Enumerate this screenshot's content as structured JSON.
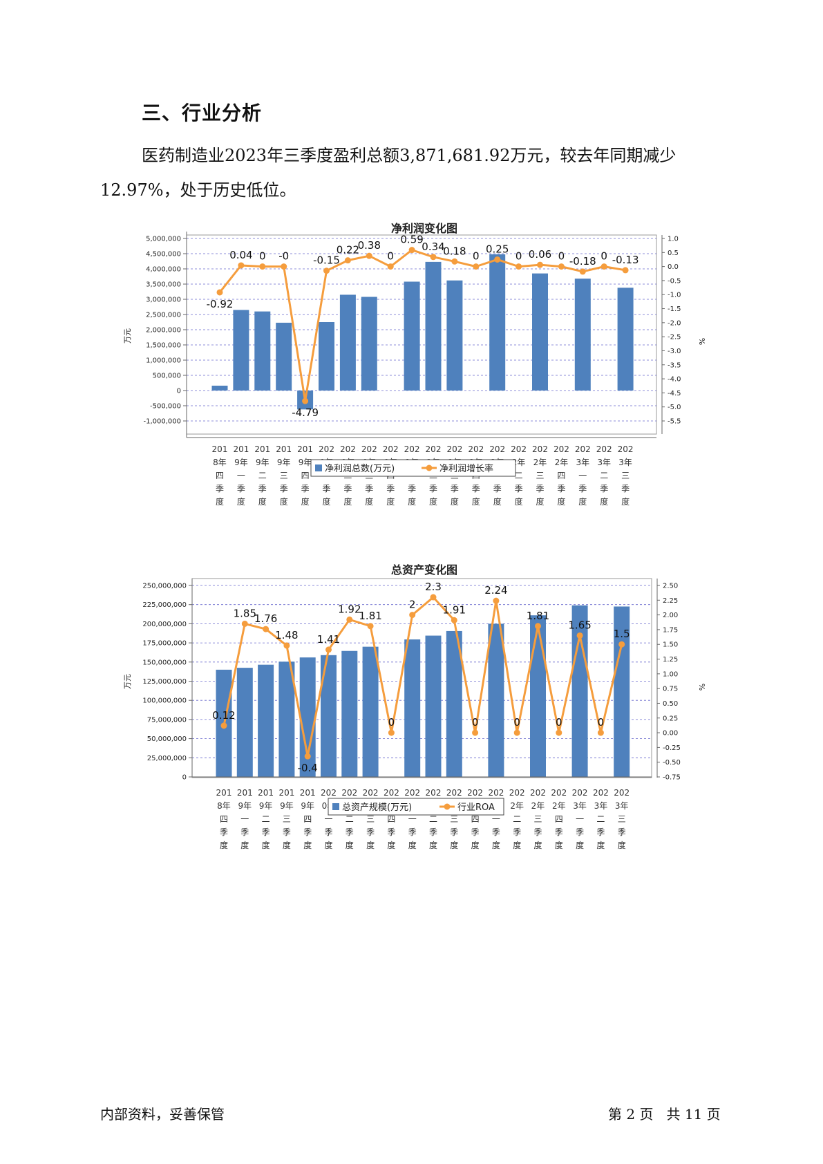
{
  "section_title": "三、行业分析",
  "paragraph": "医药制造业2023年三季度盈利总额3,871,681.92万元，较去年同期减少12.97%，处于历史低位。",
  "footer": {
    "left": "内部资料，妥善保管",
    "right": "第 2 页   共 11 页"
  },
  "colors": {
    "bar": "#4f81bd",
    "line": "#f59d3d",
    "grid": "#4040c0"
  },
  "chart_data": [
    {
      "type": "bar",
      "title": "净利润变化图",
      "ylabel": "万元",
      "y2label": "%",
      "categories": [
        [
          "201",
          "8年",
          "四",
          "季",
          "度"
        ],
        [
          "201",
          "9年",
          "一",
          "季",
          "度"
        ],
        [
          "201",
          "9年",
          "二",
          "季",
          "度"
        ],
        [
          "201",
          "9年",
          "三",
          "季",
          "度"
        ],
        [
          "201",
          "9年",
          "四",
          "季",
          "度"
        ],
        [
          "202",
          "0年",
          "一",
          "季",
          "度"
        ],
        [
          "202",
          "0年",
          "二",
          "季",
          "度"
        ],
        [
          "202",
          "0年",
          "三",
          "季",
          "度"
        ],
        [
          "202",
          "0年",
          "四",
          "季",
          "度"
        ],
        [
          "202",
          "1年",
          "一",
          "季",
          "度"
        ],
        [
          "202",
          "1年",
          "二",
          "季",
          "度"
        ],
        [
          "202",
          "1年",
          "三",
          "季",
          "度"
        ],
        [
          "202",
          "1年",
          "四",
          "季",
          "度"
        ],
        [
          "202",
          "2年",
          "一",
          "季",
          "度"
        ],
        [
          "202",
          "2年",
          "二",
          "季",
          "度"
        ],
        [
          "202",
          "2年",
          "三",
          "季",
          "度"
        ],
        [
          "202",
          "2年",
          "四",
          "季",
          "度"
        ],
        [
          "202",
          "3年",
          "一",
          "季",
          "度"
        ],
        [
          "202",
          "3年",
          "二",
          "季",
          "度"
        ],
        [
          "202",
          "3年",
          "三",
          "季",
          "度"
        ]
      ],
      "series": [
        {
          "name": "净利润总数(万元)",
          "kind": "bar",
          "axis": "left",
          "values": [
            160000,
            2650000,
            2600000,
            2230000,
            -620000,
            2250000,
            3150000,
            3080000,
            0,
            3580000,
            4230000,
            3620000,
            0,
            4480000,
            0,
            3850000,
            0,
            3680000,
            0,
            3380000
          ]
        },
        {
          "name": "净利润增长率",
          "kind": "line",
          "axis": "right",
          "values": [
            -0.92,
            0.04,
            0,
            0,
            -4.79,
            -0.15,
            0.22,
            0.38,
            0,
            0.59,
            0.34,
            0.18,
            0,
            0.25,
            0,
            0.06,
            0,
            -0.18,
            0,
            -0.13
          ],
          "labels": [
            "-0.92",
            "0.04",
            "0",
            "-0",
            "-4.79",
            "-0.15",
            "0.22",
            "0.38",
            "0",
            "0.59",
            "0.34",
            "0.18",
            "0",
            "0.25",
            "0",
            "0.06",
            "0",
            "-0.18",
            "0",
            "-0.13"
          ]
        }
      ],
      "ylim": [
        -1000000,
        5000000
      ],
      "yticks": [
        5000000,
        4500000,
        4000000,
        3500000,
        3000000,
        2500000,
        2000000,
        1500000,
        1000000,
        500000,
        0,
        -500000,
        -1000000
      ],
      "ytick_labels": [
        "5,000,000",
        "4,500,000",
        "4,000,000",
        "3,500,000",
        "3,000,000",
        "2,500,000",
        "2,000,000",
        "1,500,000",
        "1,000,000",
        "500,000",
        "0",
        "-500,000",
        "-1,000,000"
      ],
      "y2lim": [
        -5.5,
        1.0
      ],
      "y2ticks": [
        1.0,
        0.5,
        0.0,
        -0.5,
        -1.0,
        -1.5,
        -2.0,
        -2.5,
        -3.0,
        -3.5,
        -4.0,
        -4.5,
        -5.0,
        -5.5
      ],
      "y2tick_labels": [
        "1.0",
        "0.5",
        "0.0",
        "-0.5",
        "-1.0",
        "-1.5",
        "-2.0",
        "-2.5",
        "-3.0",
        "-3.5",
        "-4.0",
        "-4.5",
        "-5.0",
        "-5.5"
      ],
      "grid": true,
      "legend": "bottom"
    },
    {
      "type": "bar",
      "title": "总资产变化图",
      "ylabel": "万元",
      "y2label": "%",
      "categories": [
        [
          "201",
          "8年",
          "四",
          "季",
          "度"
        ],
        [
          "201",
          "9年",
          "一",
          "季",
          "度"
        ],
        [
          "201",
          "9年",
          "二",
          "季",
          "度"
        ],
        [
          "201",
          "9年",
          "三",
          "季",
          "度"
        ],
        [
          "201",
          "9年",
          "四",
          "季",
          "度"
        ],
        [
          "202",
          "0年",
          "一",
          "季",
          "度"
        ],
        [
          "202",
          "0年",
          "二",
          "季",
          "度"
        ],
        [
          "202",
          "0年",
          "三",
          "季",
          "度"
        ],
        [
          "202",
          "0年",
          "四",
          "季",
          "度"
        ],
        [
          "202",
          "1年",
          "一",
          "季",
          "度"
        ],
        [
          "202",
          "1年",
          "二",
          "季",
          "度"
        ],
        [
          "202",
          "1年",
          "三",
          "季",
          "度"
        ],
        [
          "202",
          "1年",
          "四",
          "季",
          "度"
        ],
        [
          "202",
          "2年",
          "一",
          "季",
          "度"
        ],
        [
          "202",
          "2年",
          "二",
          "季",
          "度"
        ],
        [
          "202",
          "2年",
          "三",
          "季",
          "度"
        ],
        [
          "202",
          "2年",
          "四",
          "季",
          "度"
        ],
        [
          "202",
          "3年",
          "一",
          "季",
          "度"
        ],
        [
          "202",
          "3年",
          "二",
          "季",
          "度"
        ],
        [
          "202",
          "3年",
          "三",
          "季",
          "度"
        ]
      ],
      "series": [
        {
          "name": "总资产规模(万元)",
          "kind": "bar",
          "axis": "left",
          "values": [
            140000000,
            142500000,
            146500000,
            150500000,
            156000000,
            159000000,
            164500000,
            170000000,
            0,
            179500000,
            184500000,
            190500000,
            0,
            200000000,
            0,
            211000000,
            0,
            224000000,
            0,
            222500000
          ]
        },
        {
          "name": "行业ROA",
          "kind": "line",
          "axis": "right",
          "values": [
            0.12,
            1.85,
            1.76,
            1.48,
            -0.4,
            1.41,
            1.92,
            1.81,
            0,
            2,
            2.3,
            1.91,
            0,
            2.24,
            0,
            1.81,
            0,
            1.65,
            0,
            1.5
          ],
          "labels": [
            "0.12",
            "1.85",
            "1.76",
            "1.48",
            "-0.4",
            "1.41",
            "1.92",
            "1.81",
            "0",
            "2",
            "2.3",
            "1.91",
            "0",
            "2.24",
            "0",
            "1.81",
            "0",
            "1.65",
            "0",
            "1.5"
          ]
        }
      ],
      "ylim": [
        0,
        250000000
      ],
      "yticks": [
        250000000,
        225000000,
        200000000,
        175000000,
        150000000,
        125000000,
        100000000,
        75000000,
        50000000,
        25000000,
        0
      ],
      "ytick_labels": [
        "250,000,000",
        "225,000,000",
        "200,000,000",
        "175,000,000",
        "150,000,000",
        "125,000,000",
        "100,000,000",
        "75,000,000",
        "50,000,000",
        "25,000,000",
        "0"
      ],
      "y2lim": [
        -0.75,
        2.5
      ],
      "y2ticks": [
        2.5,
        2.25,
        2.0,
        1.75,
        1.5,
        1.25,
        1.0,
        0.75,
        0.5,
        0.25,
        0.0,
        -0.25,
        -0.5,
        -0.75
      ],
      "y2tick_labels": [
        "2.50",
        "2.25",
        "2.00",
        "1.75",
        "1.50",
        "1.25",
        "1.00",
        "0.75",
        "0.50",
        "0.25",
        "0.00",
        "-0.25",
        "-0.50",
        "-0.75"
      ],
      "grid": true,
      "legend": "bottom"
    }
  ]
}
